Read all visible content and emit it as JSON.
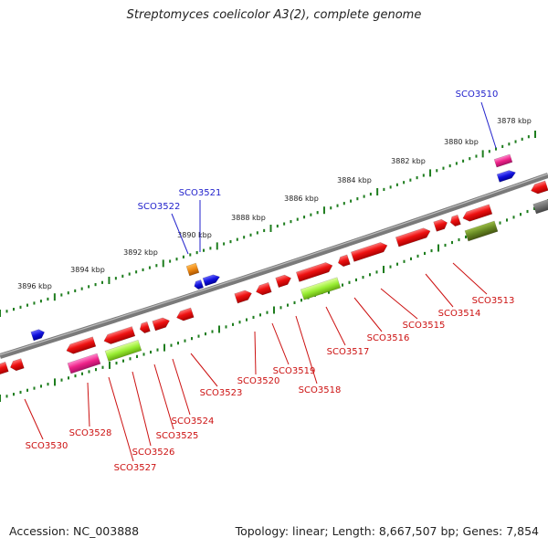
{
  "title": "Streptomyces coelicolor A3(2), complete genome",
  "footer": {
    "accession": "Accession: NC_003888",
    "stats": "Topology: linear; Length: 8,667,507 bp; Genes: 7,854"
  },
  "colors": {
    "backbone": "#7a7a7a",
    "ticks": "#1e7d1e",
    "red_gene": "#ee1111",
    "blue_gene": "#1111dd",
    "pink_gene": "#ee2288",
    "lime_gene": "#99ee33",
    "olive_gene": "#668822",
    "orange_gene": "#ee8811",
    "gray_gene": "#666666",
    "label_blue": "#2222cc",
    "label_red": "#cc1111"
  },
  "scale": {
    "unit": "kbp",
    "ticks": [
      "3878 kbp",
      "3880 kbp",
      "3882 kbp",
      "3884 kbp",
      "3886 kbp",
      "3888 kbp",
      "3890 kbp",
      "3892 kbp",
      "3894 kbp",
      "3896 kbp"
    ]
  },
  "gene_labels_top": [
    "SCO3510",
    "SCO3521",
    "SCO3522"
  ],
  "gene_labels_bottom": [
    "SCO3513",
    "SCO3514",
    "SCO3515",
    "SCO3516",
    "SCO3517",
    "SCO3518",
    "SCO3519",
    "SCO3520",
    "SCO3523",
    "SCO3524",
    "SCO3525",
    "SCO3526",
    "SCO3527",
    "SCO3528",
    "SCO3530"
  ]
}
